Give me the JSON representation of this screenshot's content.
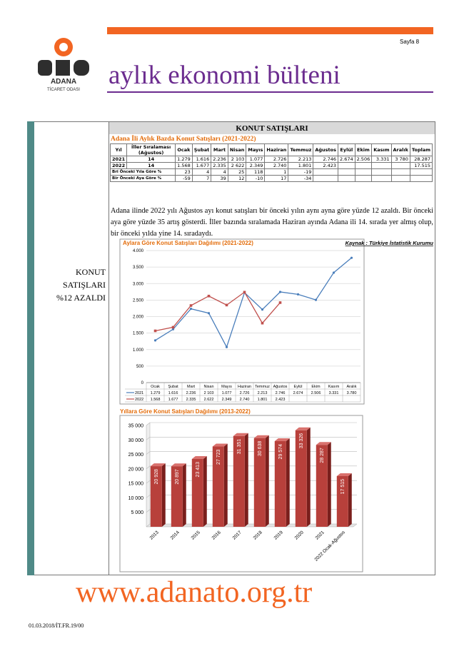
{
  "header": {
    "page": "Sayfa 8",
    "logo_name": "ADANA",
    "logo_sub": "TİCARET ODASI",
    "title": "aylık ekonomi bülteni"
  },
  "sidebar": {
    "lines": [
      "KONUT",
      "SATIŞLARI",
      "%12 AZALDI"
    ]
  },
  "section_title": "KONUT SATIŞLARI",
  "table": {
    "title": "Adana İli Aylık Bazda Konut Satışları (2021-2022)",
    "headers": [
      "Yıl",
      "İller Sıralaması (Ağustos)",
      "Ocak",
      "Şubat",
      "Mart",
      "Nisan",
      "Mayıs",
      "Haziran",
      "Temmuz",
      "Ağustos",
      "Eylül",
      "Ekim",
      "Kasım",
      "Aralık",
      "Toplam"
    ],
    "rows": [
      {
        "label": "2021",
        "rank": "14",
        "cells": [
          "1.279",
          "1.616",
          "2.236",
          "2 103",
          "1.077",
          "2.726",
          "2.213",
          "2.746",
          "2.674",
          "2.506",
          "3.331",
          "3 780",
          "28.287"
        ]
      },
      {
        "label": "2022",
        "rank": "14",
        "cells": [
          "1.568",
          "1.677",
          "2.335",
          "2 622",
          "2.349",
          "2.740",
          "1.801",
          "2.423",
          null,
          null,
          null,
          null,
          "17.515"
        ]
      },
      {
        "label": "Bri Önceki Yıla Göre %",
        "cells": [
          23,
          4,
          4,
          25,
          118,
          1,
          -19,
          null,
          null,
          null,
          null,
          null,
          null
        ]
      },
      {
        "label": "Bir Önceki Aya Göre %",
        "cells": [
          -59,
          7,
          39,
          12,
          -10,
          17,
          -34,
          null,
          null,
          null,
          null,
          null,
          null
        ]
      }
    ]
  },
  "paragraph": "Adana ilinde 2022 yılı Ağustos ayı konut satışları bir önceki yılın aynı ayna göre yüzde 12 azaldı. Bir önceki aya göre yüzde 35 artış gösterdi. İller bazında sıralamada Haziran ayında Adana ili 14. sırada yer almış olup, bir önceki yılda yine 14. sıradaydı.",
  "chart_data": [
    {
      "type": "line",
      "title": "Aylara Göre Konut Satışları Dağılımı (2021-2022)",
      "source": "Kaynak : Türkiye İstatistik Kurumu",
      "categories": [
        "Ocak",
        "Şubat",
        "Mart",
        "Nisan",
        "Mayıs",
        "Haziran",
        "Temmuz",
        "Ağustos",
        "Eylül",
        "Ekim",
        "Kasım",
        "Aralık"
      ],
      "series": [
        {
          "name": "2021",
          "color": "#4a7ebb",
          "values": [
            1279,
            1616,
            2236,
            2103,
            1077,
            2726,
            2213,
            2746,
            2674,
            2506,
            3331,
            3780
          ],
          "value_labels": [
            "1.279",
            "1.616",
            "2.236",
            "2 103",
            "1.077",
            "2.726",
            "2.213",
            "2.746",
            "2.674",
            "2.506",
            "3.331",
            "3.780"
          ]
        },
        {
          "name": "2022",
          "color": "#c0504d",
          "values": [
            1568,
            1677,
            2335,
            2622,
            2349,
            2740,
            1801,
            2423,
            null,
            null,
            null,
            null
          ],
          "value_labels": [
            "1.568",
            "1.677",
            "2.335",
            "2.622",
            "2.349",
            "2.740",
            "1.801",
            "2.423",
            null,
            null,
            null,
            null
          ]
        }
      ],
      "ylim": [
        0,
        4000
      ],
      "yticks": [
        0,
        500,
        {
          "value": 1000,
          "label": "1.000"
        },
        {
          "value": 1500,
          "label": "1.500"
        },
        {
          "value": 2000,
          "label": "2.000"
        },
        {
          "value": 2500,
          "label": "2.500"
        },
        {
          "value": 3000,
          "label": "3.000"
        },
        {
          "value": 3500,
          "label": "3.500"
        },
        {
          "value": 4000,
          "label": "4.000"
        }
      ],
      "grid": true
    },
    {
      "type": "bar",
      "title": "Yıllara Göre Konut Satışları Dağılımı (2013-2022)",
      "color": "#b8403b",
      "categories": [
        "2013",
        "2014",
        "2015",
        "2016",
        "2017",
        "2018",
        "2019",
        "2020",
        "2021",
        "2022 Ocak-Ağustos"
      ],
      "values": [
        20928,
        20897,
        23413,
        27723,
        31351,
        30638,
        29574,
        33326,
        28287,
        17515
      ],
      "value_labels": [
        "20 928",
        "20 897",
        "23 413",
        "27 723",
        "31 351",
        "30 638",
        "29 574",
        "33 326",
        "28 287",
        "17 515"
      ],
      "ylim": [
        0,
        35000
      ],
      "yticks": [
        {
          "value": 5000,
          "label": "5 000"
        },
        {
          "value": 10000,
          "label": "10 000"
        },
        {
          "value": 15000,
          "label": "15 000"
        },
        {
          "value": 20000,
          "label": "20 000"
        },
        {
          "value": 25000,
          "label": "25 000"
        },
        {
          "value": 30000,
          "label": "30 000"
        },
        {
          "value": 35000,
          "label": "35 000"
        }
      ],
      "grid": true
    }
  ],
  "footer": {
    "url": "www.adanato.org.tr",
    "code": "01.03.2018/İT.FR.19/00"
  }
}
